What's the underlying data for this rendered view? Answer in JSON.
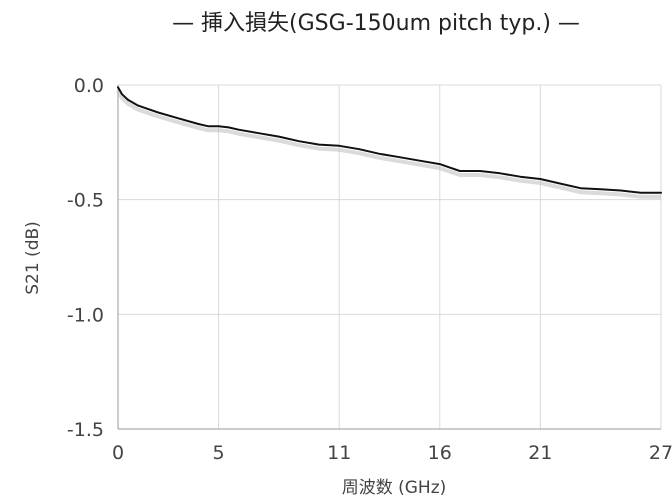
{
  "chart_data": {
    "type": "line",
    "title": "— 挿入損失(GSG-150um pitch typ.) —",
    "xlabel": "周波数 (GHz)",
    "ylabel": "S21 (dB)",
    "xlim": [
      0,
      27
    ],
    "ylim": [
      -1.5,
      0.0
    ],
    "x_ticks": [
      0,
      5,
      11,
      16,
      21,
      27
    ],
    "x_tick_labels": [
      "0",
      "5",
      "11",
      "16",
      "21",
      "27"
    ],
    "y_ticks": [
      0.0,
      -0.5,
      -1.0,
      -1.5
    ],
    "y_tick_labels": [
      "0.0",
      "-0.5",
      "-1.0",
      "-1.5"
    ],
    "grid": true,
    "series": [
      {
        "color": "#111111",
        "x": [
          0,
          0.2,
          0.5,
          1,
          1.5,
          2,
          3,
          4,
          4.5,
          5,
          5.5,
          6,
          7,
          8,
          9,
          10,
          11,
          12,
          13,
          14,
          15,
          16,
          16.5,
          17,
          17.5,
          18,
          19,
          20,
          21,
          22,
          23,
          24,
          25,
          26,
          26.5,
          27
        ],
        "y": [
          -0.01,
          -0.04,
          -0.065,
          -0.09,
          -0.105,
          -0.12,
          -0.145,
          -0.17,
          -0.18,
          -0.18,
          -0.185,
          -0.195,
          -0.21,
          -0.225,
          -0.245,
          -0.26,
          -0.265,
          -0.28,
          -0.3,
          -0.315,
          -0.33,
          -0.345,
          -0.36,
          -0.375,
          -0.375,
          -0.375,
          -0.385,
          -0.4,
          -0.41,
          -0.43,
          -0.45,
          -0.455,
          -0.46,
          -0.47,
          -0.47,
          -0.47
        ]
      }
    ]
  }
}
